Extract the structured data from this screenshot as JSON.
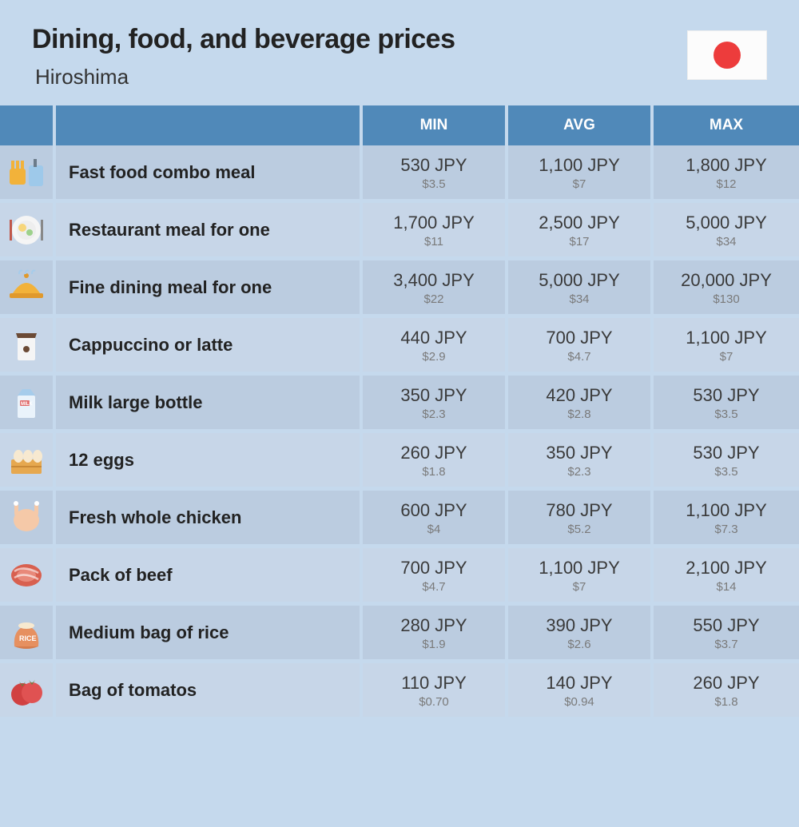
{
  "header": {
    "title": "Dining, food, and beverage prices",
    "subtitle": "Hiroshima"
  },
  "columns": {
    "min": "MIN",
    "avg": "AVG",
    "max": "MAX"
  },
  "colors": {
    "page_bg": "#c5d9ed",
    "header_bg": "#5089b9",
    "row_odd": "#bbcce0",
    "row_even": "#c7d6e8",
    "flag_dot": "#ed3c3c",
    "jpy_text": "#3a3a3a",
    "usd_text": "#7a7a7a"
  },
  "rows": [
    {
      "icon": "combo-icon",
      "item": "Fast food combo meal",
      "min_jpy": "530 JPY",
      "min_usd": "$3.5",
      "avg_jpy": "1,100 JPY",
      "avg_usd": "$7",
      "max_jpy": "1,800 JPY",
      "max_usd": "$12"
    },
    {
      "icon": "plate-icon",
      "item": "Restaurant meal for one",
      "min_jpy": "1,700 JPY",
      "min_usd": "$11",
      "avg_jpy": "2,500 JPY",
      "avg_usd": "$17",
      "max_jpy": "5,000 JPY",
      "max_usd": "$34"
    },
    {
      "icon": "cloche-icon",
      "item": "Fine dining meal for one",
      "min_jpy": "3,400 JPY",
      "min_usd": "$22",
      "avg_jpy": "5,000 JPY",
      "avg_usd": "$34",
      "max_jpy": "20,000 JPY",
      "max_usd": "$130"
    },
    {
      "icon": "coffee-icon",
      "item": "Cappuccino or latte",
      "min_jpy": "440 JPY",
      "min_usd": "$2.9",
      "avg_jpy": "700 JPY",
      "avg_usd": "$4.7",
      "max_jpy": "1,100 JPY",
      "max_usd": "$7"
    },
    {
      "icon": "milk-icon",
      "item": "Milk large bottle",
      "min_jpy": "350 JPY",
      "min_usd": "$2.3",
      "avg_jpy": "420 JPY",
      "avg_usd": "$2.8",
      "max_jpy": "530 JPY",
      "max_usd": "$3.5"
    },
    {
      "icon": "eggs-icon",
      "item": "12 eggs",
      "min_jpy": "260 JPY",
      "min_usd": "$1.8",
      "avg_jpy": "350 JPY",
      "avg_usd": "$2.3",
      "max_jpy": "530 JPY",
      "max_usd": "$3.5"
    },
    {
      "icon": "chicken-icon",
      "item": "Fresh whole chicken",
      "min_jpy": "600 JPY",
      "min_usd": "$4",
      "avg_jpy": "780 JPY",
      "avg_usd": "$5.2",
      "max_jpy": "1,100 JPY",
      "max_usd": "$7.3"
    },
    {
      "icon": "beef-icon",
      "item": "Pack of beef",
      "min_jpy": "700 JPY",
      "min_usd": "$4.7",
      "avg_jpy": "1,100 JPY",
      "avg_usd": "$7",
      "max_jpy": "2,100 JPY",
      "max_usd": "$14"
    },
    {
      "icon": "rice-icon",
      "item": "Medium bag of rice",
      "min_jpy": "280 JPY",
      "min_usd": "$1.9",
      "avg_jpy": "390 JPY",
      "avg_usd": "$2.6",
      "max_jpy": "550 JPY",
      "max_usd": "$3.7"
    },
    {
      "icon": "tomato-icon",
      "item": "Bag of tomatos",
      "min_jpy": "110 JPY",
      "min_usd": "$0.70",
      "avg_jpy": "140 JPY",
      "avg_usd": "$0.94",
      "max_jpy": "260 JPY",
      "max_usd": "$1.8"
    }
  ]
}
